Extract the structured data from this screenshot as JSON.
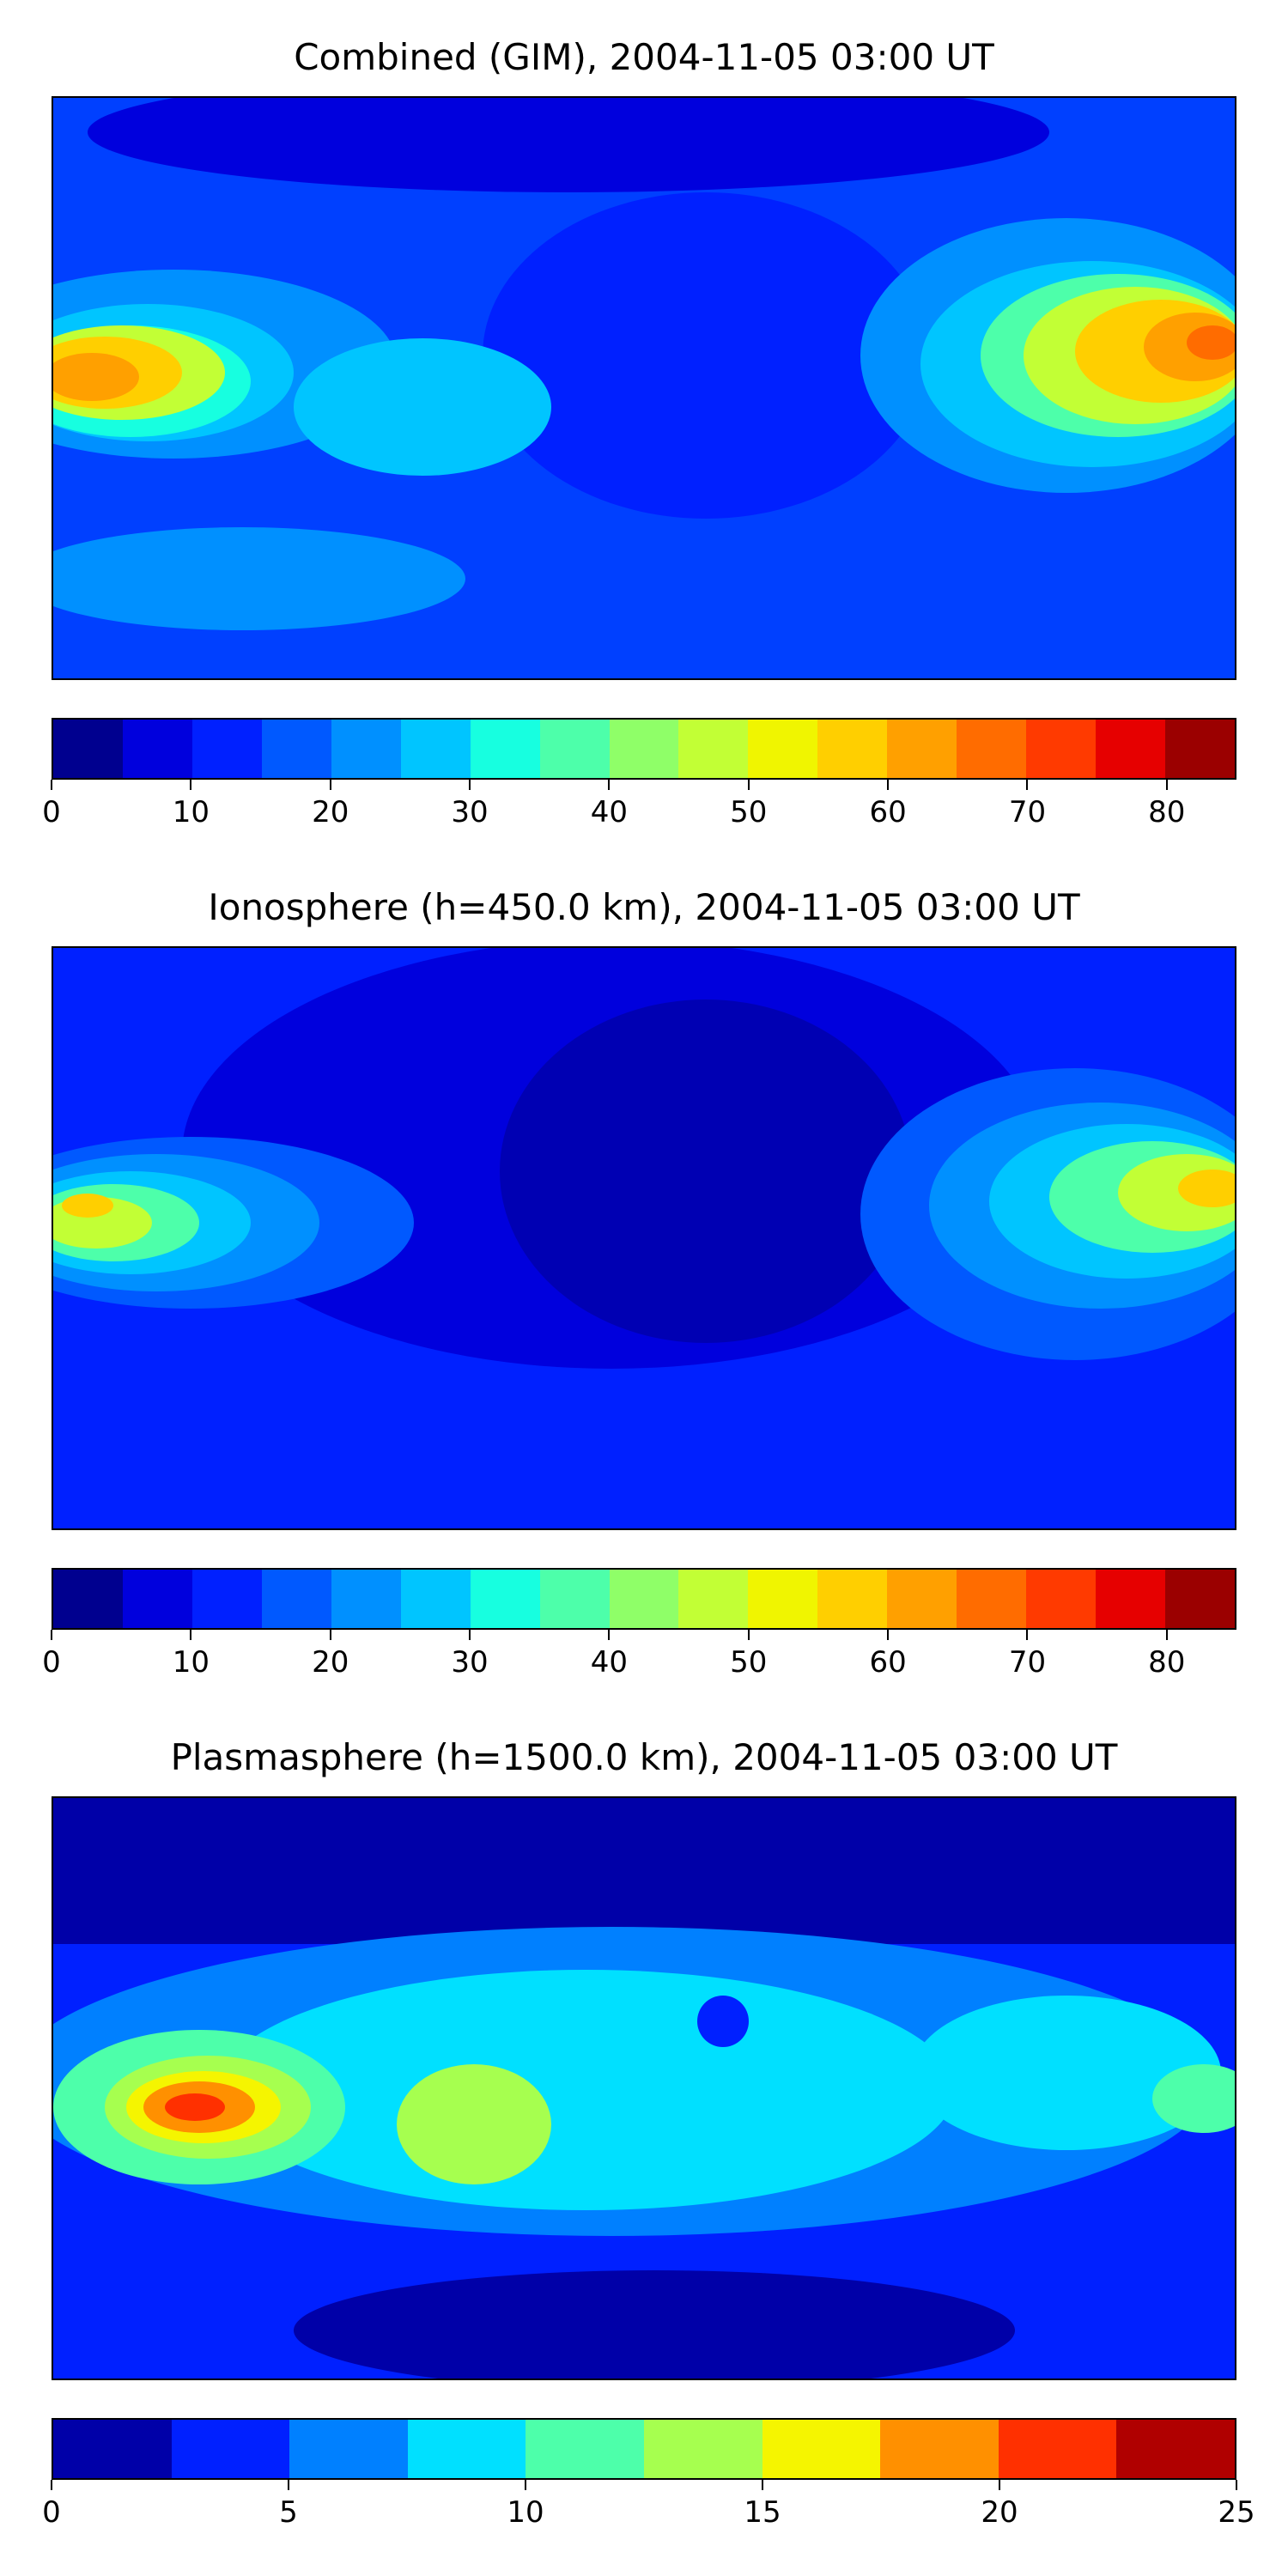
{
  "panels": [
    {
      "title": "Combined (GIM), 2004-11-05 03:00 UT",
      "colorbar": {
        "min": 0,
        "max": 85,
        "colors": [
          "#00008f",
          "#0000dd",
          "#0020ff",
          "#0059ff",
          "#0090ff",
          "#00c5ff",
          "#17ffe0",
          "#4dffaa",
          "#8fff68",
          "#c2ff35",
          "#f0f500",
          "#ffcf00",
          "#ffa000",
          "#ff6c00",
          "#ff3a00",
          "#e60000",
          "#9b0000"
        ],
        "ticks": [
          "0",
          "10",
          "20",
          "30",
          "40",
          "50",
          "60",
          "70",
          "80"
        ],
        "tick_values": [
          0,
          10,
          20,
          30,
          40,
          50,
          60,
          70,
          80
        ]
      }
    },
    {
      "title": "Ionosphere  (h=450.0 km), 2004-11-05 03:00 UT",
      "colorbar": {
        "min": 0,
        "max": 85,
        "colors": [
          "#00008f",
          "#0000dd",
          "#0020ff",
          "#0059ff",
          "#0090ff",
          "#00c5ff",
          "#17ffe0",
          "#4dffaa",
          "#8fff68",
          "#c2ff35",
          "#f0f500",
          "#ffcf00",
          "#ffa000",
          "#ff6c00",
          "#ff3a00",
          "#e60000",
          "#9b0000"
        ],
        "ticks": [
          "0",
          "10",
          "20",
          "30",
          "40",
          "50",
          "60",
          "70",
          "80"
        ],
        "tick_values": [
          0,
          10,
          20,
          30,
          40,
          50,
          60,
          70,
          80
        ]
      }
    },
    {
      "title": "Plasmasphere (h=1500.0 km), 2004-11-05 03:00 UT",
      "colorbar": {
        "min": 0,
        "max": 25,
        "colors": [
          "#0000a8",
          "#0020ff",
          "#0080ff",
          "#00e0ff",
          "#4dffaa",
          "#a6ff4f",
          "#f5f500",
          "#ff9000",
          "#ff3000",
          "#b00000"
        ],
        "ticks": [
          "0",
          "5",
          "10",
          "15",
          "20",
          "25"
        ],
        "tick_values": [
          0,
          5,
          10,
          15,
          20,
          25
        ]
      }
    }
  ]
}
